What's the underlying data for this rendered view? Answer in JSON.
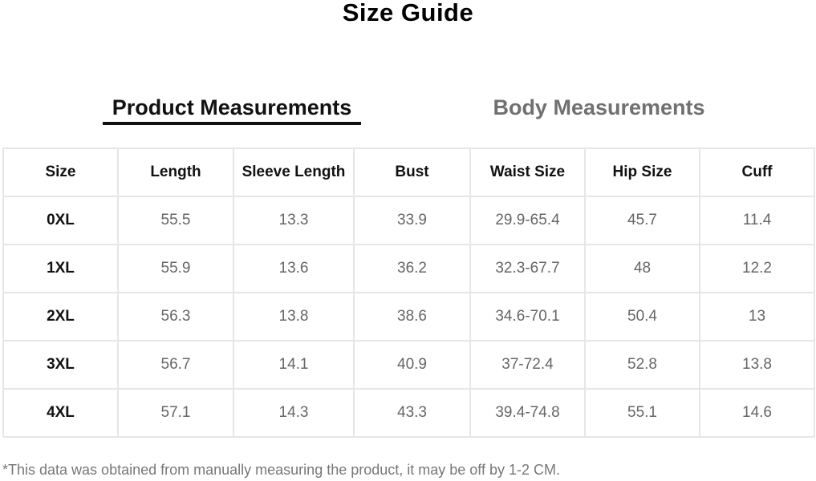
{
  "title": "Size Guide",
  "tabs": [
    {
      "label": "Product Measurements",
      "active": true
    },
    {
      "label": "Body Measurements",
      "active": false
    }
  ],
  "table": {
    "headers": [
      "Size",
      "Length",
      "Sleeve Length",
      "Bust",
      "Waist Size",
      "Hip Size",
      "Cuff"
    ],
    "rows": [
      [
        "0XL",
        "55.5",
        "13.3",
        "33.9",
        "29.9-65.4",
        "45.7",
        "11.4"
      ],
      [
        "1XL",
        "55.9",
        "13.6",
        "36.2",
        "32.3-67.7",
        "48",
        "12.2"
      ],
      [
        "2XL",
        "56.3",
        "13.8",
        "38.6",
        "34.6-70.1",
        "50.4",
        "13"
      ],
      [
        "3XL",
        "56.7",
        "14.1",
        "40.9",
        "37-72.4",
        "52.8",
        "13.8"
      ],
      [
        "4XL",
        "57.1",
        "14.3",
        "43.3",
        "39.4-74.8",
        "55.1",
        "14.6"
      ]
    ]
  },
  "note": "*This data was obtained from manually measuring the product, it may be off by 1-2 CM."
}
